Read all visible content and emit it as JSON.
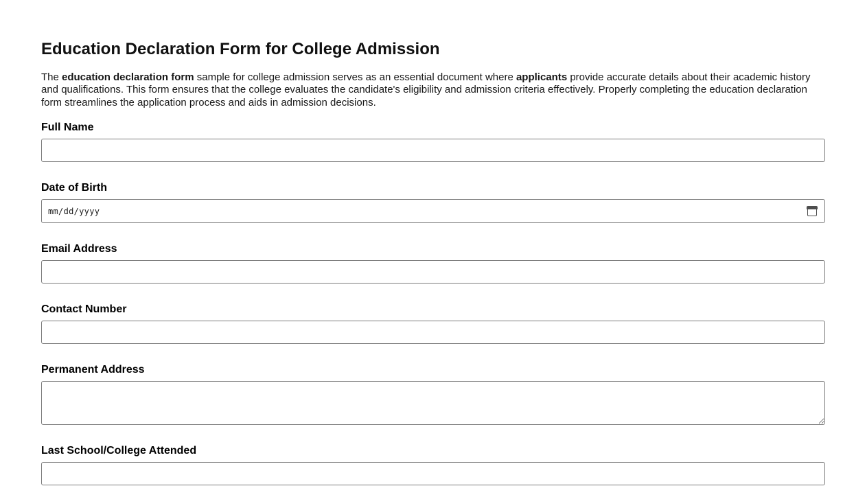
{
  "page": {
    "title": "Education Declaration Form for College Admission"
  },
  "intro": {
    "s1": "The ",
    "s2": "education declaration form",
    "s3": " sample for college admission serves as an essential document where ",
    "s4": "applicants",
    "s5": " provide accurate details about their academic history and qualifications. This form ensures that the college evaluates the candidate's eligibility and admission criteria effectively. Properly completing the education declaration form streamlines the application process and aids in admission decisions."
  },
  "form": {
    "fields": [
      {
        "label": "Full Name",
        "value": ""
      },
      {
        "label": "Date of Birth",
        "value": "",
        "placeholder": "mm/dd/yyyy"
      },
      {
        "label": "Email Address",
        "value": ""
      },
      {
        "label": "Contact Number",
        "value": ""
      },
      {
        "label": "Permanent Address",
        "value": ""
      },
      {
        "label": "Last School/College Attended",
        "value": ""
      }
    ]
  },
  "icons": {
    "date_picker": "calendar-icon"
  },
  "colors": {
    "input_border": "#7d7d7d",
    "icon": "#4e4e4e",
    "text": "#111111"
  }
}
